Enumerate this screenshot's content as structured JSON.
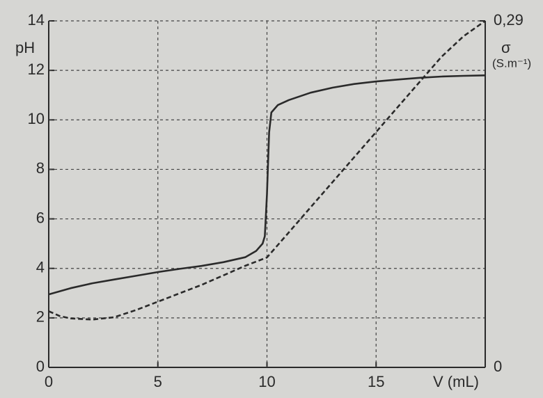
{
  "chart_data": {
    "type": "line",
    "ylabel": "pH",
    "xlabel": "V (mL)",
    "y2label": "σ",
    "y2unit": "(S.m⁻¹)",
    "xlim": [
      0,
      20
    ],
    "xticks": [
      0,
      5,
      10,
      15
    ],
    "ylim": [
      0,
      14
    ],
    "yticks": [
      0,
      2,
      4,
      6,
      8,
      10,
      12,
      14
    ],
    "y2lim": [
      0,
      0.29
    ],
    "y2ticks": [
      0,
      {
        "value": 0.29,
        "label": "0,29"
      }
    ],
    "grid": true,
    "series": [
      {
        "color": "#2a2a2a",
        "dash": false,
        "x": [
          0,
          1,
          2,
          3,
          4,
          5,
          6,
          7,
          8,
          9,
          9.5,
          9.8,
          9.9,
          10,
          10.1,
          10.2,
          10.5,
          11,
          12,
          13,
          14,
          15,
          16,
          17,
          18,
          19,
          20
        ],
        "values": [
          2.95,
          3.2,
          3.4,
          3.55,
          3.7,
          3.85,
          3.98,
          4.1,
          4.25,
          4.45,
          4.7,
          5.0,
          5.3,
          7.0,
          9.5,
          10.3,
          10.6,
          10.8,
          11.1,
          11.3,
          11.45,
          11.55,
          11.63,
          11.7,
          11.75,
          11.78,
          11.8
        ]
      },
      {
        "color": "#2a2a2a",
        "dash": true,
        "axis": "y2",
        "x": [
          0,
          0.5,
          1,
          2,
          3,
          4,
          5,
          6,
          7,
          8,
          9,
          10,
          11,
          12,
          13,
          14,
          15,
          16,
          17,
          18,
          19,
          20
        ],
        "values": [
          0.047,
          0.043,
          0.041,
          0.04,
          0.042,
          0.048,
          0.055,
          0.062,
          0.069,
          0.077,
          0.085,
          0.092,
          0.113,
          0.134,
          0.155,
          0.176,
          0.197,
          0.218,
          0.239,
          0.26,
          0.277,
          0.29
        ]
      }
    ]
  }
}
